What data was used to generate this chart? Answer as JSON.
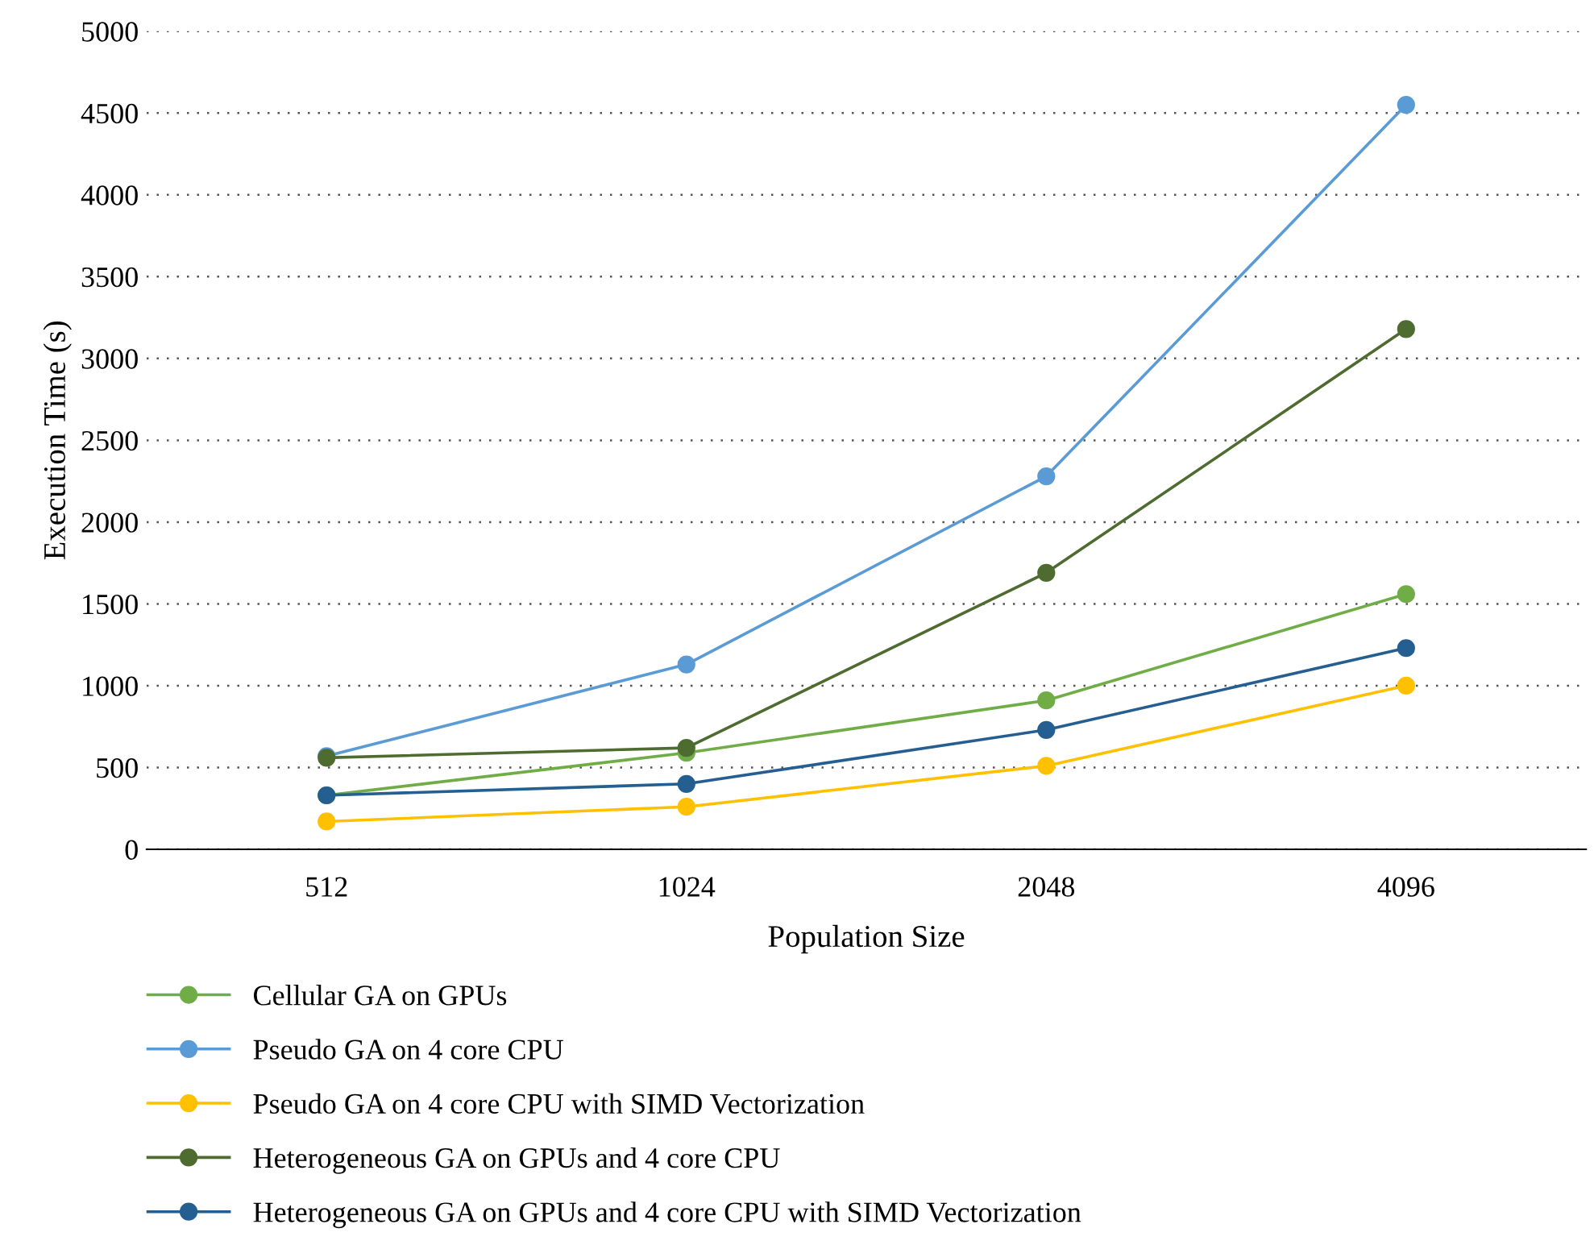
{
  "chart_data": {
    "type": "line",
    "xlabel": "Population Size",
    "ylabel": "Execution Time (s)",
    "categories": [
      "512",
      "1024",
      "2048",
      "4096"
    ],
    "series": [
      {
        "name": "Cellular GA on GPUs",
        "color": "#70ad47",
        "values": [
          330,
          590,
          910,
          1560
        ]
      },
      {
        "name": "Pseudo GA on 4 core CPU",
        "color": "#5b9bd5",
        "values": [
          570,
          1130,
          2280,
          4550
        ]
      },
      {
        "name": "Pseudo GA on 4 core CPU with SIMD Vectorization",
        "color": "#ffc000",
        "values": [
          170,
          260,
          510,
          1000
        ]
      },
      {
        "name": "Heterogeneous GA on GPUs and 4 core CPU",
        "color": "#4e6b30",
        "values": [
          560,
          620,
          1690,
          3180
        ]
      },
      {
        "name": "Heterogeneous GA on GPUs and 4 core CPU with SIMD Vectorization",
        "color": "#255e91",
        "values": [
          330,
          400,
          730,
          1230
        ]
      }
    ],
    "ylim": [
      0,
      5000
    ],
    "yticks": [
      0,
      500,
      1000,
      1500,
      2000,
      2500,
      3000,
      3500,
      4000,
      4500,
      5000
    ],
    "grid": "y",
    "legend": "bottom",
    "marker": "circle",
    "line_style": "solid"
  }
}
